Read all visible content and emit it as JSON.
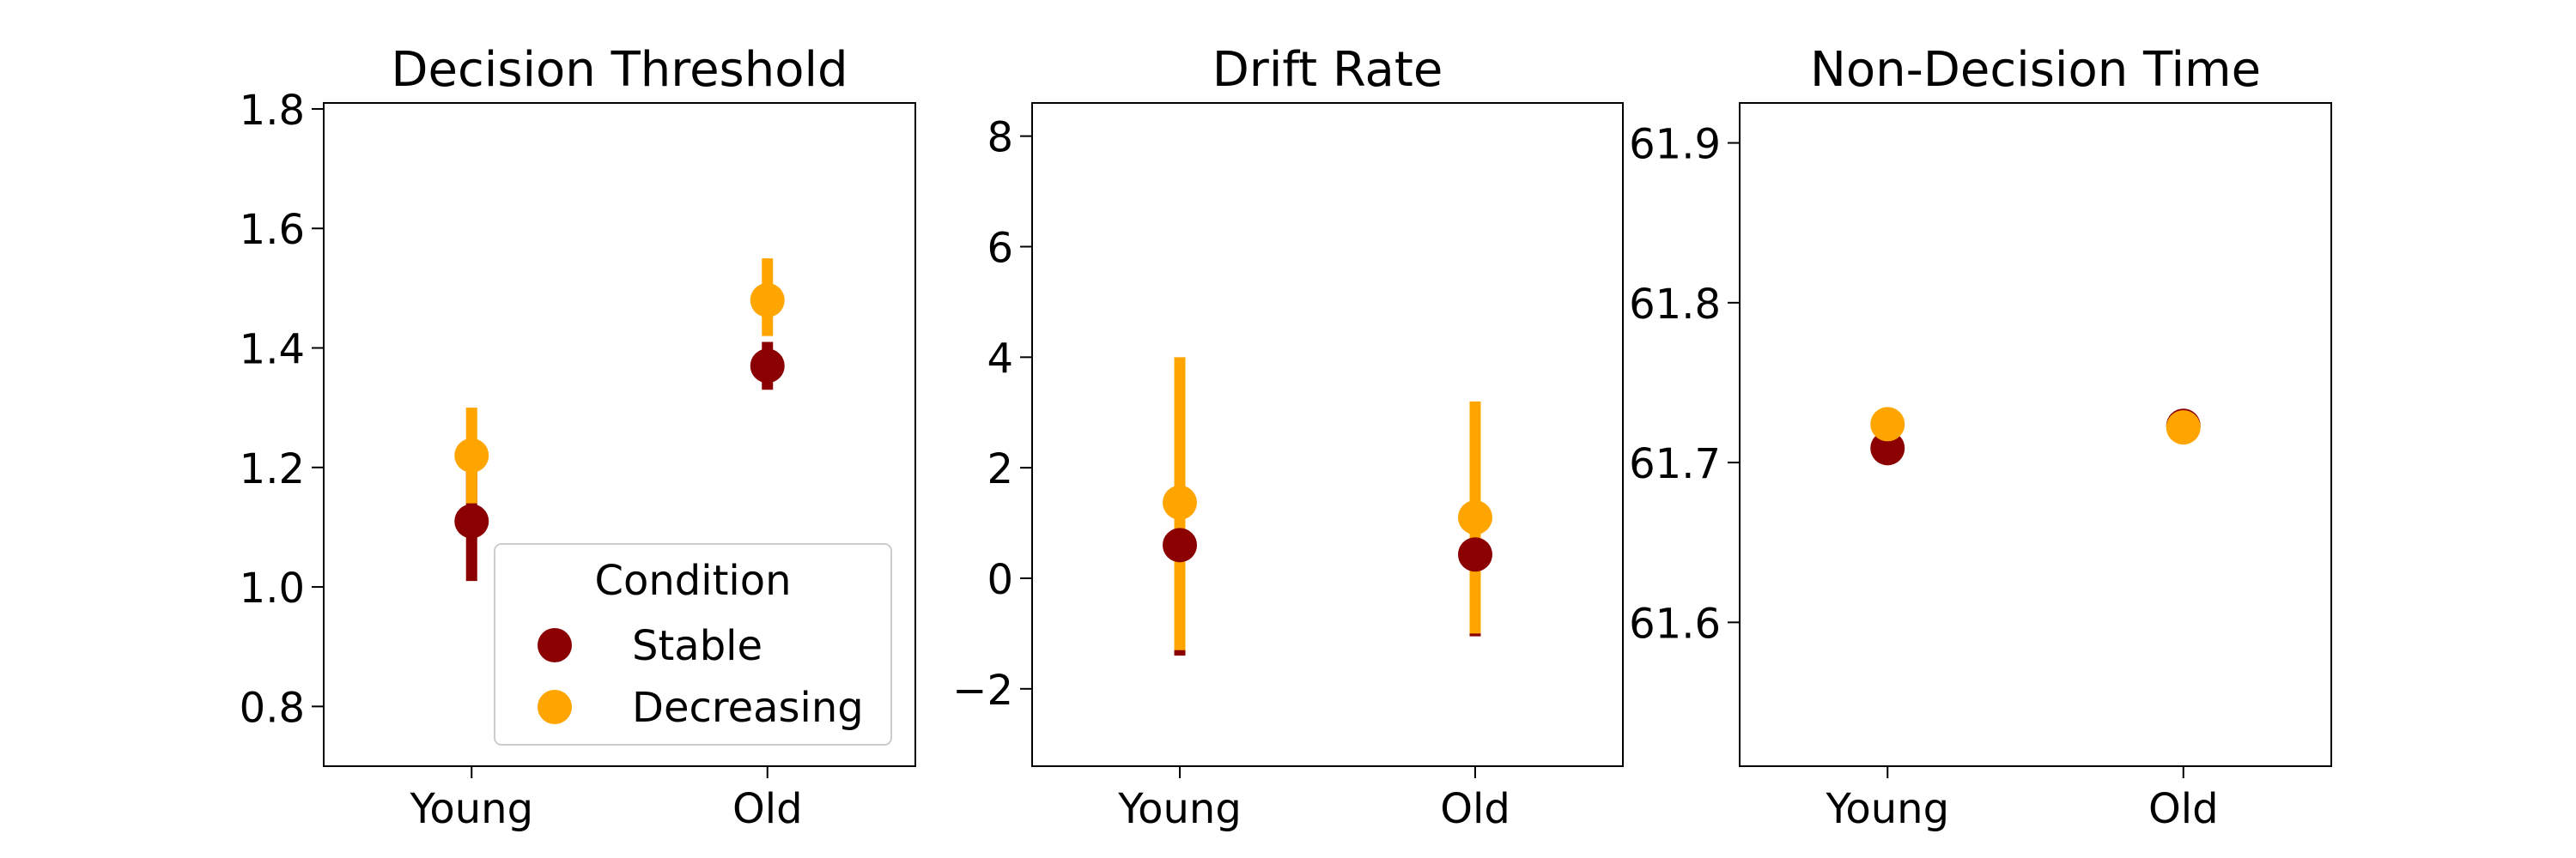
{
  "colors": {
    "Stable": "#8b0000",
    "Decreasing": "#ffa500",
    "axis": "#000000"
  },
  "legend": {
    "title": "Condition",
    "items": [
      "Stable",
      "Decreasing"
    ],
    "placement": "lower-right (first panel)"
  },
  "chart_data": [
    {
      "type": "scatter",
      "title": "Decision Threshold",
      "categories": [
        "Young",
        "Old"
      ],
      "ylim": [
        0.7,
        1.81
      ],
      "yticks": [
        "0.8",
        "1.0",
        "1.2",
        "1.4",
        "1.6",
        "1.8"
      ],
      "series": [
        {
          "name": "Stable",
          "values": [
            1.11,
            1.37
          ],
          "err_low": [
            1.01,
            1.33
          ],
          "err_high": [
            1.2,
            1.41
          ]
        },
        {
          "name": "Decreasing",
          "values": [
            1.22,
            1.48
          ],
          "err_low": [
            1.14,
            1.42
          ],
          "err_high": [
            1.3,
            1.55
          ]
        }
      ]
    },
    {
      "type": "scatter",
      "title": "Drift Rate",
      "categories": [
        "Young",
        "Old"
      ],
      "ylim": [
        -3.4,
        8.6
      ],
      "yticks": [
        "−2",
        "0",
        "2",
        "4",
        "6",
        "8"
      ],
      "series": [
        {
          "name": "Stable",
          "values": [
            0.6,
            0.43
          ],
          "err_low": [
            -1.4,
            -1.05
          ],
          "err_high": [
            2.6,
            2.0
          ]
        },
        {
          "name": "Decreasing",
          "values": [
            1.37,
            1.1
          ],
          "err_low": [
            -1.3,
            -1.0
          ],
          "err_high": [
            4.0,
            3.2
          ]
        }
      ]
    },
    {
      "type": "scatter",
      "title": "Non-Decision Time",
      "categories": [
        "Young",
        "Old"
      ],
      "ylim": [
        61.51,
        61.925
      ],
      "yticks": [
        "61.6",
        "61.7",
        "61.8",
        "61.9"
      ],
      "series": [
        {
          "name": "Stable",
          "values": [
            61.709,
            61.723
          ],
          "err_low": [
            61.709,
            61.723
          ],
          "err_high": [
            61.709,
            61.723
          ]
        },
        {
          "name": "Decreasing",
          "values": [
            61.724,
            61.722
          ],
          "err_low": [
            61.724,
            61.722
          ],
          "err_high": [
            61.724,
            61.722
          ]
        }
      ]
    }
  ]
}
